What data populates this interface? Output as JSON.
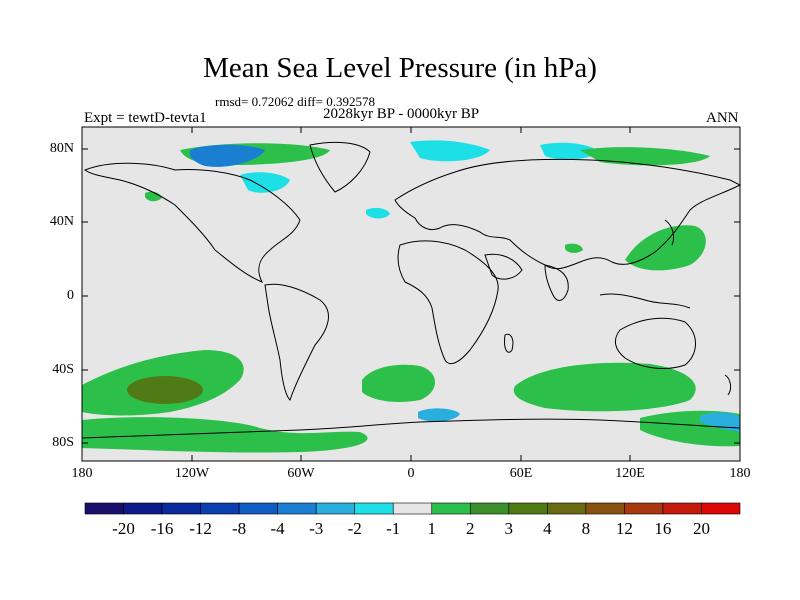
{
  "title": "Mean Sea Level Pressure (in hPa)",
  "stats_line": "rmsd= 0.72062 diff= 0.392578",
  "experiment": "Expt = tewtD-tevta1",
  "period": "2028kyr BP - 0000kyr BP",
  "season": "ANN",
  "lat_labels": [
    "80N",
    "40N",
    "0",
    "40S",
    "80S"
  ],
  "lon_labels": [
    "180",
    "120W",
    "60W",
    "0",
    "60E",
    "120E",
    "180"
  ],
  "colorbar": {
    "labels": [
      "-20",
      "-16",
      "-12",
      "-8",
      "-4",
      "-3",
      "-2",
      "-1",
      "1",
      "2",
      "3",
      "4",
      "8",
      "12",
      "16",
      "20"
    ],
    "colors": [
      "#1a0f6b",
      "#0c1a8a",
      "#0a2a9e",
      "#0b3fb0",
      "#0f5cc2",
      "#1a7fd0",
      "#2aaede",
      "#1ce0e6",
      "#e6e6e6",
      "#2cc04b",
      "#3c8f2a",
      "#4f7a16",
      "#6a6a12",
      "#8a5012",
      "#a8380f",
      "#c41a0c",
      "#dd0806"
    ]
  },
  "colors": {
    "land_line": "#000000",
    "background": "#e6e6e6"
  }
}
